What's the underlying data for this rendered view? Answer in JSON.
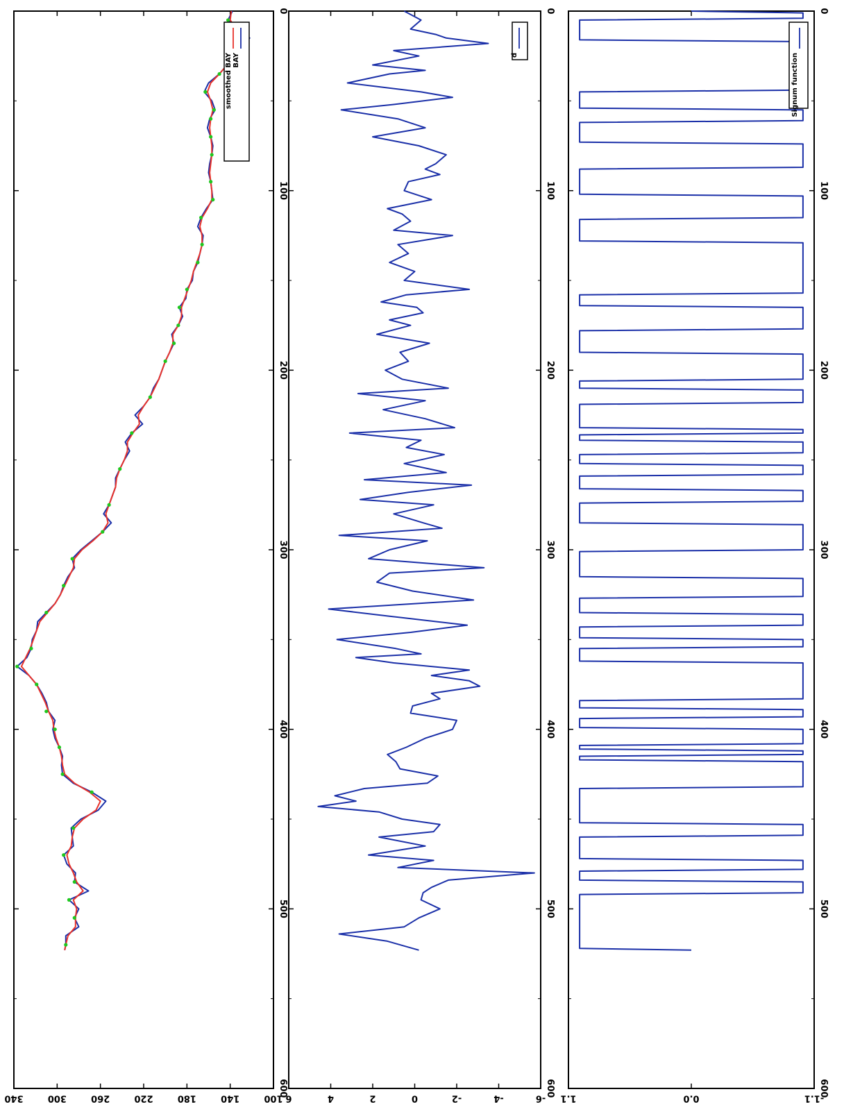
{
  "chart_data": [
    {
      "type": "line",
      "title": "",
      "xlabel": "",
      "ylabel": "",
      "xlim": [
        0,
        600
      ],
      "ylim": [
        100,
        340
      ],
      "x_ticks": [
        0,
        100,
        200,
        300,
        400,
        500,
        600
      ],
      "y_ticks": [
        100,
        140,
        180,
        220,
        260,
        300,
        340
      ],
      "x_tick_labels": [
        "0",
        "100",
        "200",
        "300",
        "400",
        "500",
        "600"
      ],
      "y_tick_labels": [
        "100",
        "140",
        "180",
        "220",
        "260",
        "300",
        "340"
      ],
      "legend_position": "top-right",
      "series": [
        {
          "name": "BAY",
          "color": "#1a2fa8",
          "x": [
            0,
            5,
            10,
            15,
            20,
            25,
            30,
            35,
            40,
            45,
            50,
            55,
            60,
            65,
            70,
            75,
            80,
            85,
            90,
            95,
            100,
            105,
            110,
            115,
            120,
            125,
            130,
            135,
            140,
            145,
            150,
            155,
            160,
            165,
            170,
            175,
            180,
            185,
            190,
            195,
            200,
            205,
            210,
            215,
            220,
            225,
            230,
            235,
            240,
            245,
            250,
            255,
            260,
            265,
            270,
            275,
            280,
            285,
            290,
            295,
            300,
            305,
            310,
            315,
            320,
            325,
            330,
            335,
            340,
            345,
            350,
            355,
            360,
            365,
            370,
            375,
            380,
            385,
            390,
            395,
            400,
            405,
            410,
            415,
            420,
            425,
            430,
            435,
            440,
            445,
            450,
            455,
            460,
            465,
            470,
            475,
            480,
            485,
            490,
            495,
            500,
            505,
            510,
            515,
            520,
            523
          ],
          "y": [
            138,
            142,
            132,
            122,
            128,
            132,
            143,
            150,
            160,
            164,
            157,
            154,
            159,
            161,
            158,
            156,
            157,
            159,
            160,
            158,
            157,
            156,
            162,
            167,
            170,
            165,
            166,
            168,
            170,
            174,
            175,
            180,
            181,
            187,
            184,
            188,
            194,
            192,
            196,
            200,
            203,
            206,
            211,
            214,
            220,
            228,
            221,
            231,
            237,
            233,
            238,
            242,
            246,
            246,
            249,
            252,
            257,
            250,
            258,
            268,
            278,
            286,
            284,
            290,
            294,
            297,
            302,
            310,
            318,
            319,
            323,
            324,
            328,
            337,
            326,
            319,
            314,
            310,
            308,
            302,
            304,
            302,
            298,
            295,
            296,
            295,
            285,
            268,
            255,
            262,
            278,
            287,
            286,
            285,
            294,
            291,
            283,
            284,
            271,
            289,
            280,
            284,
            280,
            292,
            292,
            293
          ]
        },
        {
          "name": "smoothed BAY",
          "color": "#e8322a",
          "x": [
            0,
            5,
            10,
            15,
            20,
            25,
            30,
            35,
            40,
            45,
            50,
            55,
            60,
            65,
            70,
            75,
            80,
            85,
            90,
            95,
            100,
            105,
            110,
            115,
            120,
            125,
            130,
            135,
            140,
            145,
            150,
            155,
            160,
            165,
            170,
            175,
            180,
            185,
            190,
            195,
            200,
            205,
            210,
            215,
            220,
            225,
            230,
            235,
            240,
            245,
            250,
            255,
            260,
            265,
            270,
            275,
            280,
            285,
            290,
            295,
            300,
            305,
            310,
            315,
            320,
            325,
            330,
            335,
            340,
            345,
            350,
            355,
            360,
            365,
            370,
            375,
            380,
            385,
            390,
            395,
            400,
            405,
            410,
            415,
            420,
            425,
            430,
            435,
            440,
            445,
            450,
            455,
            460,
            465,
            470,
            475,
            480,
            485,
            490,
            495,
            500,
            505,
            510,
            515,
            520,
            523
          ],
          "y": [
            139,
            140,
            134,
            127,
            128,
            134,
            143,
            150,
            158,
            161,
            158,
            156,
            158,
            159,
            158,
            157,
            157,
            158,
            159,
            158,
            157,
            157,
            161,
            166,
            168,
            166,
            166,
            168,
            171,
            174,
            176,
            179,
            182,
            185,
            185,
            188,
            193,
            193,
            196,
            200,
            203,
            206,
            210,
            214,
            220,
            225,
            224,
            230,
            235,
            235,
            238,
            242,
            245,
            246,
            249,
            252,
            255,
            253,
            258,
            267,
            277,
            284,
            285,
            289,
            293,
            297,
            302,
            309,
            316,
            319,
            322,
            325,
            329,
            333,
            326,
            319,
            315,
            311,
            308,
            304,
            303,
            301,
            298,
            296,
            295,
            293,
            284,
            270,
            260,
            264,
            276,
            284,
            286,
            287,
            291,
            289,
            285,
            282,
            276,
            285,
            282,
            283,
            283,
            290,
            292,
            293
          ]
        },
        {
          "name": "",
          "color": "#1ec81e",
          "marker": "point",
          "x": [
            5,
            20,
            35,
            45,
            55,
            60,
            70,
            80,
            95,
            105,
            115,
            130,
            140,
            155,
            165,
            175,
            185,
            195,
            215,
            235,
            255,
            275,
            290,
            305,
            320,
            335,
            355,
            365,
            375,
            390,
            400,
            410,
            425,
            435,
            455,
            470,
            485,
            495,
            505,
            520
          ],
          "y": [
            142,
            129,
            150,
            163,
            155,
            158,
            158,
            157,
            158,
            156,
            167,
            166,
            170,
            180,
            187,
            188,
            192,
            200,
            214,
            231,
            242,
            252,
            258,
            286,
            294,
            310,
            324,
            337,
            319,
            310,
            302,
            298,
            295,
            268,
            285,
            294,
            284,
            289,
            284,
            292
          ]
        }
      ]
    },
    {
      "type": "line",
      "title": "",
      "xlabel": "",
      "ylabel": "",
      "xlim": [
        0,
        600
      ],
      "ylim": [
        -6,
        6
      ],
      "x_ticks": [
        0,
        100,
        200,
        300,
        400,
        500,
        600
      ],
      "y_ticks": [
        -6,
        -4,
        -2,
        0,
        2,
        4,
        6
      ],
      "x_tick_labels": [
        "0",
        "100",
        "200",
        "300",
        "400",
        "500",
        "600"
      ],
      "y_tick_labels": [
        "-6",
        "-4",
        "-2",
        "0",
        "2",
        "4",
        "6"
      ],
      "legend_position": "top-right",
      "series": [
        {
          "name": "d",
          "color": "#1a2fa8",
          "x": [
            0,
            5,
            10,
            13,
            15,
            18,
            22,
            25,
            30,
            33,
            35,
            40,
            45,
            48,
            52,
            55,
            60,
            65,
            70,
            75,
            80,
            85,
            88,
            91,
            95,
            100,
            105,
            110,
            113,
            117,
            122,
            125,
            130,
            135,
            140,
            145,
            150,
            155,
            158,
            162,
            165,
            168,
            172,
            175,
            180,
            185,
            190,
            195,
            200,
            205,
            210,
            213,
            217,
            222,
            227,
            232,
            235,
            239,
            243,
            247,
            252,
            257,
            261,
            264,
            268,
            272,
            275,
            280,
            285,
            288,
            292,
            295,
            300,
            305,
            310,
            313,
            318,
            323,
            328,
            333,
            337,
            342,
            346,
            350,
            355,
            358,
            360,
            363,
            367,
            370,
            373,
            376,
            380,
            383,
            387,
            391,
            395,
            400,
            405,
            410,
            414,
            418,
            422,
            426,
            430,
            433,
            437,
            440,
            443,
            446,
            450,
            453,
            457,
            460,
            465,
            470,
            473,
            477,
            480,
            484,
            488,
            491,
            495,
            500,
            505,
            510,
            514,
            518,
            523
          ],
          "y": [
            0.5,
            -0.3,
            0.2,
            -1.0,
            -1.5,
            -3.5,
            1.0,
            -0.2,
            2.0,
            -0.5,
            1.2,
            3.2,
            -0.3,
            -1.8,
            1.0,
            3.5,
            0.8,
            -0.5,
            2.0,
            -0.2,
            -1.5,
            -1.0,
            -0.5,
            -1.2,
            0.3,
            0.5,
            -0.8,
            1.3,
            0.6,
            0.2,
            1.0,
            -1.8,
            0.8,
            0.3,
            1.2,
            0.0,
            0.5,
            -2.6,
            0.4,
            1.6,
            -0.1,
            -0.4,
            1.2,
            0.2,
            1.8,
            -0.7,
            0.7,
            0.3,
            1.4,
            0.6,
            -1.6,
            2.7,
            -0.5,
            1.5,
            -0.5,
            -1.9,
            3.1,
            -0.3,
            0.4,
            -1.4,
            0.5,
            -1.5,
            2.4,
            -2.7,
            0.3,
            2.6,
            -0.9,
            1.0,
            -0.4,
            -1.3,
            3.6,
            -0.6,
            1.2,
            2.2,
            -3.3,
            1.2,
            1.8,
            0.1,
            -2.8,
            4.1,
            1.2,
            -2.5,
            0.2,
            3.7,
            0.9,
            -0.3,
            2.8,
            1.0,
            -2.6,
            -0.8,
            -2.6,
            -3.1,
            -0.8,
            -1.2,
            0.1,
            0.2,
            -2.0,
            -1.8,
            -0.5,
            0.4,
            1.3,
            0.9,
            0.7,
            -1.1,
            -0.6,
            2.4,
            3.8,
            2.8,
            4.6,
            1.7,
            0.6,
            -1.2,
            -0.9,
            1.7,
            -0.5,
            2.2,
            -0.9,
            0.8,
            -5.7,
            -1.6,
            -0.8,
            -0.4,
            -0.3,
            -1.2,
            -0.2,
            0.5,
            3.6,
            1.3,
            -0.2
          ]
        }
      ]
    },
    {
      "type": "line",
      "title": "",
      "xlabel": "",
      "ylabel": "",
      "xlim": [
        0,
        600
      ],
      "ylim": [
        -1.1,
        1.1
      ],
      "x_ticks": [
        0,
        100,
        200,
        300,
        400,
        500,
        600
      ],
      "y_ticks": [
        -1.1,
        0.0,
        1.1
      ],
      "x_tick_labels": [
        "0",
        "100",
        "200",
        "300",
        "400",
        "500",
        "600"
      ],
      "y_tick_labels": [
        "-1.1",
        "0.0",
        "1.1"
      ],
      "legend_position": "top-right",
      "series": [
        {
          "name": "Signum function",
          "color": "#1a2fa8",
          "x": [
            0,
            1,
            4,
            5,
            16,
            17,
            44,
            45,
            54,
            55,
            61,
            62,
            73,
            74,
            87,
            88,
            102,
            103,
            115,
            116,
            128,
            129,
            157,
            158,
            164,
            165,
            177,
            178,
            190,
            191,
            205,
            206,
            210,
            211,
            218,
            219,
            232,
            233,
            235,
            236,
            239,
            240,
            246,
            247,
            252,
            253,
            258,
            259,
            266,
            267,
            273,
            274,
            285,
            286,
            300,
            301,
            315,
            316,
            326,
            327,
            335,
            336,
            342,
            343,
            349,
            350,
            354,
            355,
            362,
            363,
            383,
            384,
            388,
            389,
            393,
            394,
            399,
            400,
            408,
            409,
            411,
            412,
            414,
            415,
            417,
            418,
            432,
            433,
            452,
            453,
            459,
            460,
            472,
            473,
            478,
            479,
            484,
            485,
            491,
            492,
            522,
            523
          ],
          "y": [
            0.0,
            -1.0,
            -1.0,
            1.0,
            1.0,
            -1.0,
            -1.0,
            1.0,
            1.0,
            -1.0,
            -1.0,
            1.0,
            1.0,
            -1.0,
            -1.0,
            1.0,
            1.0,
            -1.0,
            -1.0,
            1.0,
            1.0,
            -1.0,
            -1.0,
            1.0,
            1.0,
            -1.0,
            -1.0,
            1.0,
            1.0,
            -1.0,
            -1.0,
            1.0,
            1.0,
            -1.0,
            -1.0,
            1.0,
            1.0,
            -1.0,
            -1.0,
            1.0,
            1.0,
            -1.0,
            -1.0,
            1.0,
            1.0,
            -1.0,
            -1.0,
            1.0,
            1.0,
            -1.0,
            -1.0,
            1.0,
            1.0,
            -1.0,
            -1.0,
            1.0,
            1.0,
            -1.0,
            -1.0,
            1.0,
            1.0,
            -1.0,
            -1.0,
            1.0,
            1.0,
            -1.0,
            -1.0,
            1.0,
            1.0,
            -1.0,
            -1.0,
            1.0,
            1.0,
            -1.0,
            -1.0,
            1.0,
            1.0,
            -1.0,
            -1.0,
            1.0,
            1.0,
            -1.0,
            -1.0,
            1.0,
            1.0,
            -1.0,
            -1.0,
            1.0,
            1.0,
            -1.0,
            -1.0,
            1.0,
            1.0,
            -1.0,
            -1.0,
            1.0,
            1.0,
            -1.0,
            -1.0,
            1.0,
            1.0,
            0.0
          ]
        }
      ]
    }
  ]
}
